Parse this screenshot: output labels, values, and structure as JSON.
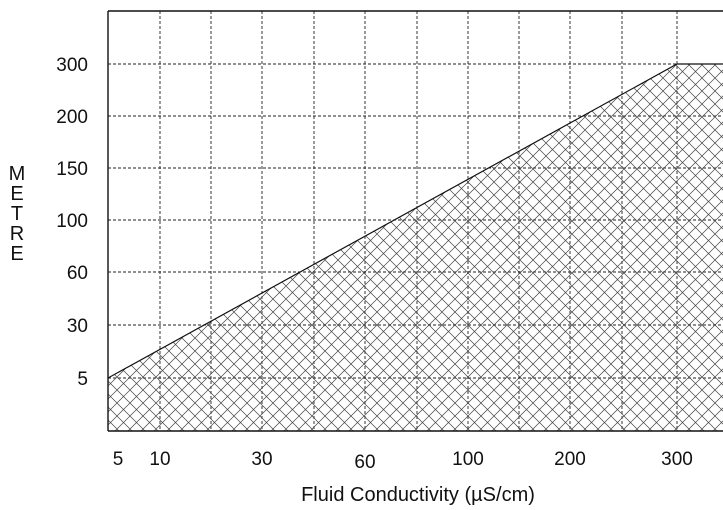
{
  "chart_data": {
    "type": "area",
    "xlabel": "Fluid Conductivity (µS/cm)",
    "ylabel": "METRE",
    "x_ticks": [
      "5",
      "10",
      "30",
      "60",
      "100",
      "200",
      "300"
    ],
    "y_ticks": [
      "5",
      "30",
      "60",
      "100",
      "150",
      "200",
      "300"
    ],
    "x": [
      "5",
      "300"
    ],
    "upper_bound": [
      "5",
      "300"
    ],
    "fill_pattern": "cross-hatch",
    "grid": true,
    "grid_style": "dotted",
    "colors": {
      "line": "#111111",
      "grid": "#222222",
      "hatch": "#444444",
      "background": "#ffffff"
    }
  }
}
